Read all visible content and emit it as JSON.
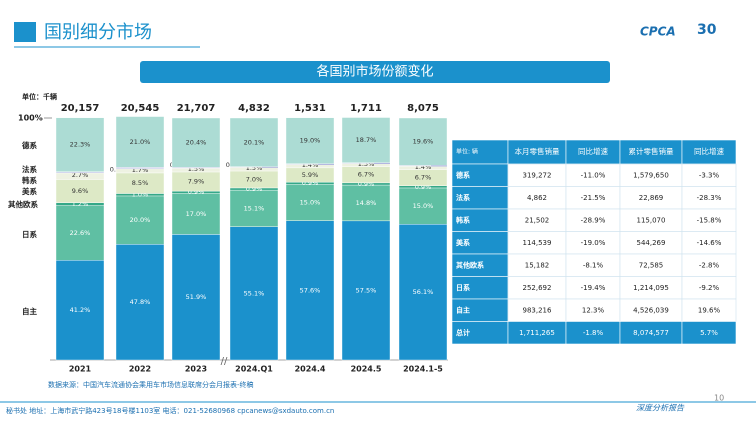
{
  "header": {
    "title": "国别细分市场",
    "logo": "CPCA",
    "logo_badge": "30"
  },
  "chart_data": {
    "type": "bar",
    "stacked": true,
    "title": "各国别市场份额变化",
    "unit": "单位：千辆",
    "categories": [
      "2021",
      "2022",
      "2023",
      "2024.Q1",
      "2024.4",
      "2024.5",
      "2024.1-5"
    ],
    "ylim": [
      0,
      100
    ],
    "yticks": [
      {
        "value": 100,
        "label": "100%"
      }
    ],
    "totals": {
      "values": [
        20157,
        20545,
        21707,
        4832,
        1531,
        1711,
        8075
      ],
      "value_labels": [
        "20,157",
        "20,545",
        "21,707",
        "4,832",
        "1,531",
        "1,711",
        "8,075"
      ]
    },
    "series": [
      {
        "name": "自主",
        "color": "#1b91cc",
        "values": [
          41.2,
          47.8,
          51.9,
          55.1,
          57.6,
          57.5,
          56.1
        ],
        "value_labels": [
          "41.2%",
          "47.8%",
          "51.9%",
          "55.1%",
          "57.6%",
          "57.5%",
          "56.1%"
        ]
      },
      {
        "name": "日系",
        "color": "#5fbfa3",
        "values": [
          22.6,
          20.0,
          17.0,
          15.1,
          15.0,
          14.8,
          15.0
        ],
        "value_labels": [
          "22.6%",
          "20.0%",
          "17.0%",
          "15.1%",
          "15.0%",
          "14.8%",
          "15.0%"
        ]
      },
      {
        "name": "其他欧系",
        "color": "#35a888",
        "values": [
          1.2,
          1.0,
          0.9,
          0.9,
          0.9,
          0.9,
          0.9
        ],
        "value_labels": [
          "1.2%",
          "1.0%",
          "0.9%",
          "0.9%",
          "0.9%",
          "0.9%",
          "0.9%"
        ]
      },
      {
        "name": "美系",
        "color": "#dde9c6",
        "values": [
          9.6,
          8.5,
          7.9,
          7.0,
          5.9,
          6.7,
          6.7
        ],
        "value_labels": [
          "9.6%",
          "8.5%",
          "7.9%",
          "7.0%",
          "5.9%",
          "6.7%",
          "6.7%"
        ]
      },
      {
        "name": "韩系",
        "color": "#eef2e2",
        "values": [
          2.7,
          1.7,
          1.5,
          1.5,
          1.4,
          1.3,
          1.4
        ],
        "value_labels": [
          "2.7%",
          "1.7%",
          "1.5%",
          "1.5%",
          "1.4%",
          "1.3%",
          "1.4%"
        ]
      },
      {
        "name": "法系",
        "color": "#c3c6e8",
        "values": [
          0.5,
          0.6,
          0.4,
          0.3,
          0.3,
          0.3,
          0.3
        ],
        "value_labels": [
          "0.5%",
          "0.6%",
          "0.4%",
          "0.3%",
          "0.3%",
          "0.3%",
          "0.3%"
        ]
      },
      {
        "name": "德系",
        "color": "#acdcd4",
        "values": [
          22.3,
          21.0,
          20.4,
          20.1,
          19.0,
          18.7,
          19.6
        ],
        "value_labels": [
          "22.3%",
          "21.0%",
          "20.4%",
          "20.1%",
          "19.0%",
          "18.7%",
          "19.6%"
        ]
      }
    ]
  },
  "table": {
    "columns": [
      "单位: 辆",
      "本月零售销量",
      "同比增速",
      "累计零售销量",
      "同比增速"
    ],
    "rows": [
      [
        "德系",
        "319,272",
        "-11.0%",
        "1,579,650",
        "-3.3%"
      ],
      [
        "法系",
        "4,862",
        "-21.5%",
        "22,869",
        "-28.3%"
      ],
      [
        "韩系",
        "21,502",
        "-28.9%",
        "115,070",
        "-15.8%"
      ],
      [
        "美系",
        "114,539",
        "-19.0%",
        "544,269",
        "-14.6%"
      ],
      [
        "其他欧系",
        "15,182",
        "-8.1%",
        "72,585",
        "-2.8%"
      ],
      [
        "日系",
        "252,692",
        "-19.4%",
        "1,214,095",
        "-9.2%"
      ],
      [
        "自主",
        "983,216",
        "12.3%",
        "4,526,039",
        "19.6%"
      ],
      [
        "总计",
        "1,711,265",
        "-1.8%",
        "8,074,577",
        "5.7%"
      ]
    ]
  },
  "source": "数据来源：中国汽车流通协会乘用车市场信息联席分会月报表-终稿",
  "footer": {
    "address": "秘书处   地址：上海市武宁路423号18号楼1103室     电话：021-52680968     cpcanews@sxdauto.com.cn",
    "report": "深度分析报告",
    "page": "10"
  }
}
